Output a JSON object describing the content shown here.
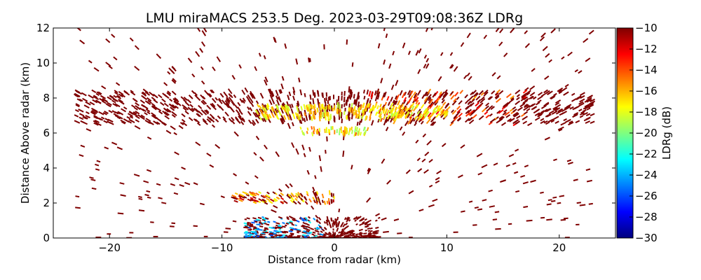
{
  "chart_data": {
    "type": "scatter",
    "title": "LMU miraMACS 253.5 Deg. 2023-03-29T09:08:36Z  LDRg",
    "xlabel": "Distance from radar (km)",
    "ylabel": "Distance Above radar  (km)",
    "xlim": [
      -25,
      25
    ],
    "ylim": [
      0,
      12
    ],
    "x_ticks": [
      -20,
      -10,
      0,
      10,
      20
    ],
    "x_tick_labels": [
      "−20",
      "−10",
      "0",
      "10",
      "20"
    ],
    "y_ticks": [
      0,
      2,
      4,
      6,
      8,
      10,
      12
    ],
    "y_tick_labels": [
      "0",
      "2",
      "4",
      "6",
      "8",
      "10",
      "12"
    ],
    "grid": false,
    "colorbar": {
      "label": "LDRg (dB)",
      "range": [
        -30,
        -10
      ],
      "ticks": [
        -30,
        -28,
        -26,
        -24,
        -22,
        -20,
        -18,
        -16,
        -14,
        -12,
        -10
      ],
      "tick_labels": [
        "−30",
        "−28",
        "−26",
        "−24",
        "−22",
        "−20",
        "−18",
        "−16",
        "−14",
        "−12",
        "−10"
      ],
      "colormap": "jet",
      "colors": [
        "#00007f",
        "#0000ff",
        "#007fff",
        "#00ffff",
        "#7fff7f",
        "#ffff00",
        "#ff7f00",
        "#ff0000",
        "#7f0000"
      ]
    },
    "regions": [
      {
        "feature": "cloud layer",
        "x_range": [
          -23,
          23
        ],
        "y_range": [
          6.5,
          8.4
        ],
        "ldr_typical": -10,
        "ldr_core": -16
      },
      {
        "feature": "bright core",
        "x_range": [
          -7,
          10
        ],
        "y_range": [
          6.8,
          7.6
        ],
        "ldr_typical": -17
      },
      {
        "feature": "mid level band",
        "x_range": [
          -3,
          3
        ],
        "y_range": [
          5.9,
          6.3
        ],
        "ldr_typical": -17
      },
      {
        "feature": "low level band",
        "x_range": [
          -9,
          0
        ],
        "y_range": [
          2.0,
          2.6
        ],
        "ldr_typical": -16
      },
      {
        "feature": "near-radar clutter",
        "x_range": [
          -8,
          4
        ],
        "y_range": [
          0,
          1.2
        ],
        "ldr_typical": -10,
        "ldr_min": -26
      },
      {
        "feature": "sparse echoes",
        "x_range": [
          -23,
          23
        ],
        "y_range": [
          0,
          12
        ],
        "ldr_typical": -10
      }
    ]
  }
}
